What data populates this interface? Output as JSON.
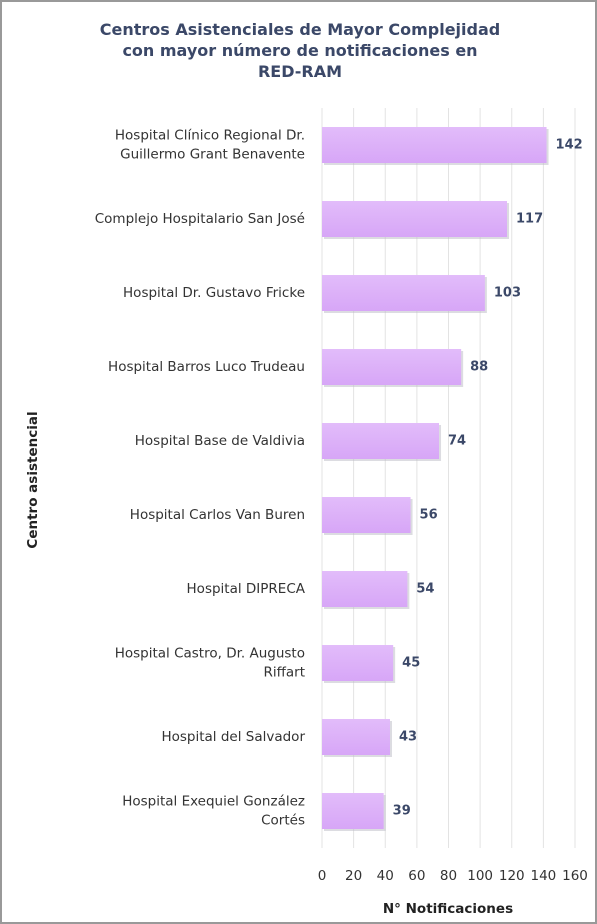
{
  "chart_data": {
    "type": "barh",
    "title": "Centros Asistenciales de Mayor Complejidad con mayor número de notificaciones en RED-RAM",
    "xlabel": "N° Notificaciones",
    "ylabel": "Centro asistencial",
    "categories": [
      "Hospital Clínico Regional Dr. Guillermo Grant Benavente",
      "Complejo Hospitalario San José",
      "Hospital Dr. Gustavo Fricke",
      "Hospital Barros Luco Trudeau",
      "Hospital Base de Valdivia",
      "Hospital Carlos Van Buren",
      "Hospital DIPRECA",
      "Hospital Castro, Dr. Augusto Riffart",
      "Hospital del Salvador",
      "Hospital Exequiel González Cortés"
    ],
    "values": [
      142,
      117,
      103,
      88,
      74,
      56,
      54,
      45,
      43,
      39
    ],
    "color": "#d7a6f7",
    "xlim": [
      0,
      160
    ],
    "xticks": [
      0,
      20,
      40,
      60,
      80,
      100,
      120,
      140,
      160
    ],
    "grid": true
  }
}
